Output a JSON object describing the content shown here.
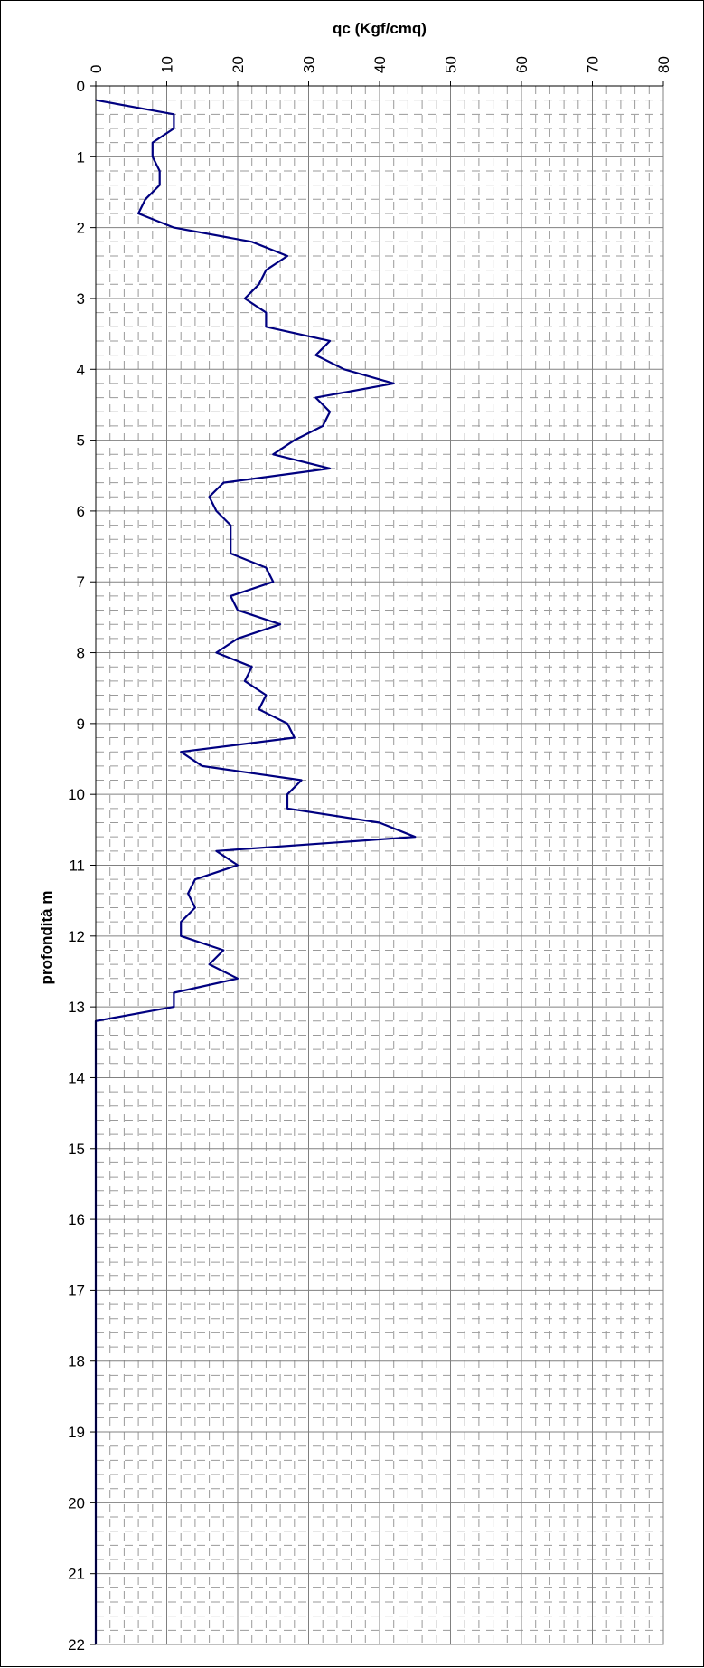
{
  "chart_data": {
    "type": "line",
    "title": "",
    "xlabel": "qc (Kgf/cmq)",
    "ylabel": "profondità m",
    "x_axis_position": "top",
    "x_tick_rotation": "vertical",
    "y_axis_inverted": true,
    "xlim": [
      0,
      80
    ],
    "ylim": [
      0,
      22
    ],
    "x_ticks": [
      0,
      10,
      20,
      30,
      40,
      50,
      60,
      70,
      80
    ],
    "y_ticks": [
      0,
      1,
      2,
      3,
      4,
      5,
      6,
      7,
      8,
      9,
      10,
      11,
      12,
      13,
      14,
      15,
      16,
      17,
      18,
      19,
      20,
      21,
      22
    ],
    "grid": true,
    "minor_grid": "dashed",
    "series_color": "#000080",
    "series": [
      {
        "name": "",
        "points": [
          [
            0,
            0.2
          ],
          [
            11,
            0.4
          ],
          [
            11,
            0.6
          ],
          [
            8,
            0.8
          ],
          [
            8,
            1.0
          ],
          [
            9,
            1.2
          ],
          [
            9,
            1.4
          ],
          [
            7,
            1.6
          ],
          [
            6,
            1.8
          ],
          [
            11,
            2.0
          ],
          [
            22,
            2.2
          ],
          [
            27,
            2.4
          ],
          [
            24,
            2.6
          ],
          [
            23,
            2.8
          ],
          [
            21,
            3.0
          ],
          [
            24,
            3.2
          ],
          [
            24,
            3.4
          ],
          [
            33,
            3.6
          ],
          [
            31,
            3.8
          ],
          [
            35,
            4.0
          ],
          [
            42,
            4.2
          ],
          [
            31,
            4.4
          ],
          [
            33,
            4.6
          ],
          [
            32,
            4.8
          ],
          [
            28,
            5.0
          ],
          [
            25,
            5.2
          ],
          [
            33,
            5.4
          ],
          [
            18,
            5.6
          ],
          [
            16,
            5.8
          ],
          [
            17,
            6.0
          ],
          [
            19,
            6.2
          ],
          [
            19,
            6.4
          ],
          [
            19,
            6.6
          ],
          [
            24,
            6.8
          ],
          [
            25,
            7.0
          ],
          [
            19,
            7.2
          ],
          [
            20,
            7.4
          ],
          [
            26,
            7.6
          ],
          [
            20,
            7.8
          ],
          [
            17,
            8.0
          ],
          [
            22,
            8.2
          ],
          [
            21,
            8.4
          ],
          [
            24,
            8.6
          ],
          [
            23,
            8.8
          ],
          [
            27,
            9.0
          ],
          [
            28,
            9.2
          ],
          [
            12,
            9.4
          ],
          [
            15,
            9.6
          ],
          [
            29,
            9.8
          ],
          [
            27,
            10.0
          ],
          [
            27,
            10.2
          ],
          [
            40,
            10.4
          ],
          [
            45,
            10.6
          ],
          [
            17,
            10.8
          ],
          [
            20,
            11.0
          ],
          [
            14,
            11.2
          ],
          [
            13,
            11.4
          ],
          [
            14,
            11.6
          ],
          [
            12,
            11.8
          ],
          [
            12,
            12.0
          ],
          [
            18,
            12.2
          ],
          [
            16,
            12.4
          ],
          [
            20,
            12.6
          ],
          [
            11,
            12.8
          ],
          [
            11,
            13.0
          ],
          [
            0,
            13.2
          ],
          [
            0,
            22.0
          ]
        ]
      }
    ]
  }
}
